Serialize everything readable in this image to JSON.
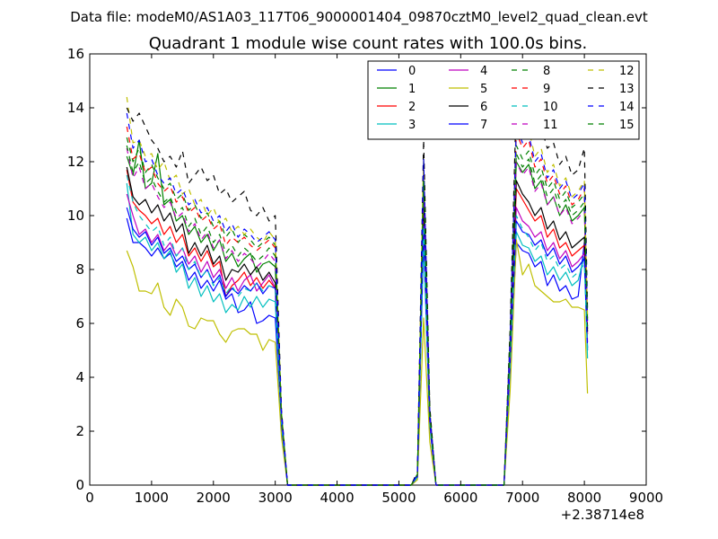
{
  "chart_data": {
    "type": "line",
    "suptitle": "Data file: modeM0/AS1A03_117T06_9000001404_09870cztM0_level2_quad_clean.evt",
    "title": "Quadrant 1 module wise count rates with 100.0s bins.",
    "xlabel": "",
    "ylabel": "",
    "x_offset_label": "+2.38714e8",
    "xlim": [
      0,
      9000
    ],
    "ylim": [
      0,
      16
    ],
    "xticks": [
      0,
      1000,
      2000,
      3000,
      4000,
      5000,
      6000,
      7000,
      8000,
      9000
    ],
    "yticks": [
      0,
      2,
      4,
      6,
      8,
      10,
      12,
      14,
      16
    ],
    "legend_position": "top-right",
    "legend_columns": 4,
    "x": [
      600,
      700,
      800,
      900,
      1000,
      1100,
      1200,
      1300,
      1400,
      1500,
      1600,
      1700,
      1800,
      1900,
      2000,
      2100,
      2200,
      2300,
      2400,
      2500,
      2600,
      2700,
      2800,
      2900,
      3000,
      3100,
      3200,
      3300,
      5200,
      5300,
      5400,
      5500,
      5600,
      5700,
      6700,
      6800,
      6900,
      7000,
      7100,
      7200,
      7300,
      7400,
      7500,
      7600,
      7700,
      7800,
      7900,
      8000,
      8050
    ],
    "series": [
      {
        "name": "0",
        "color": "#0000ff",
        "dash": "solid",
        "values": [
          9.9,
          9.0,
          9.0,
          8.8,
          8.5,
          8.8,
          8.4,
          8.6,
          8.1,
          8.3,
          7.6,
          7.9,
          7.3,
          7.6,
          7.2,
          7.6,
          6.9,
          7.1,
          6.4,
          6.5,
          6.8,
          6.0,
          6.1,
          6.3,
          6.2,
          2.3,
          0.0,
          0.0,
          0.0,
          0.3,
          9.3,
          2.2,
          0.0,
          0.0,
          0.0,
          4.3,
          9.0,
          8.7,
          8.6,
          8.1,
          8.3,
          7.4,
          7.8,
          7.2,
          7.4,
          6.9,
          7.0,
          9.0,
          5.0
        ]
      },
      {
        "name": "1",
        "color": "#008000",
        "dash": "solid",
        "values": [
          12.2,
          11.5,
          12.8,
          11.0,
          11.2,
          12.3,
          10.4,
          10.6,
          9.8,
          10.0,
          9.3,
          9.6,
          9.0,
          9.3,
          8.7,
          9.1,
          8.3,
          8.6,
          8.1,
          8.4,
          8.6,
          7.9,
          8.2,
          8.3,
          8.1,
          2.5,
          0.0,
          0.0,
          0.0,
          0.4,
          11.2,
          2.6,
          0.0,
          0.0,
          0.0,
          5.2,
          12.0,
          11.6,
          11.9,
          11.0,
          11.3,
          10.4,
          10.7,
          10.0,
          10.4,
          9.8,
          10.0,
          10.3,
          5.8
        ]
      },
      {
        "name": "2",
        "color": "#ff0000",
        "dash": "solid",
        "values": [
          11.7,
          10.5,
          10.2,
          10.0,
          9.7,
          9.9,
          9.3,
          9.6,
          9.0,
          9.3,
          8.5,
          8.8,
          8.3,
          8.7,
          8.1,
          8.3,
          7.0,
          7.4,
          7.6,
          7.9,
          7.4,
          7.7,
          7.3,
          7.6,
          7.3,
          2.4,
          0.0,
          0.0,
          0.0,
          0.3,
          10.3,
          2.4,
          0.0,
          0.0,
          0.0,
          4.9,
          11.0,
          10.6,
          10.2,
          9.8,
          10.0,
          9.2,
          9.5,
          8.8,
          9.0,
          8.5,
          8.7,
          8.9,
          5.6
        ]
      },
      {
        "name": "3",
        "color": "#00bfbf",
        "dash": "solid",
        "values": [
          11.2,
          9.3,
          9.0,
          9.2,
          8.7,
          9.0,
          8.4,
          8.7,
          7.9,
          8.2,
          7.3,
          7.7,
          7.0,
          7.4,
          6.8,
          7.1,
          6.4,
          6.7,
          6.5,
          7.0,
          6.6,
          7.0,
          6.6,
          6.9,
          6.8,
          2.2,
          0.0,
          0.0,
          0.0,
          0.3,
          9.0,
          2.2,
          0.0,
          0.0,
          0.0,
          4.4,
          9.4,
          8.9,
          8.8,
          8.3,
          8.5,
          7.8,
          8.1,
          7.6,
          7.9,
          7.4,
          7.6,
          8.5,
          4.7
        ]
      },
      {
        "name": "4",
        "color": "#bf00bf",
        "dash": "solid",
        "values": [
          10.8,
          10.0,
          9.3,
          9.5,
          9.0,
          9.3,
          8.7,
          9.0,
          8.5,
          8.8,
          8.2,
          8.5,
          7.9,
          8.3,
          7.7,
          8.0,
          7.3,
          7.7,
          7.2,
          7.6,
          7.8,
          7.2,
          7.5,
          7.8,
          7.3,
          2.4,
          0.0,
          0.0,
          0.0,
          0.3,
          9.8,
          2.3,
          0.0,
          0.0,
          0.0,
          4.7,
          10.3,
          9.8,
          9.6,
          9.2,
          9.4,
          8.7,
          9.0,
          8.4,
          8.7,
          8.1,
          8.3,
          8.6,
          5.3
        ]
      },
      {
        "name": "5",
        "color": "#bfbf00",
        "dash": "solid",
        "values": [
          8.7,
          8.1,
          7.2,
          7.2,
          7.1,
          7.5,
          6.6,
          6.3,
          6.9,
          6.6,
          5.9,
          5.8,
          6.2,
          6.1,
          6.1,
          5.6,
          5.3,
          5.7,
          5.8,
          5.8,
          5.6,
          5.6,
          5.0,
          5.4,
          5.3,
          1.8,
          0.0,
          0.0,
          0.0,
          0.2,
          6.2,
          1.6,
          0.0,
          0.0,
          0.0,
          3.5,
          9.1,
          7.8,
          8.2,
          7.4,
          7.2,
          7.0,
          6.8,
          6.8,
          6.9,
          6.6,
          6.6,
          6.5,
          3.4
        ]
      },
      {
        "name": "6",
        "color": "#000000",
        "dash": "solid",
        "values": [
          11.8,
          10.7,
          10.4,
          10.6,
          10.1,
          10.4,
          9.8,
          10.1,
          9.4,
          9.7,
          8.6,
          9.0,
          8.5,
          8.9,
          8.2,
          8.5,
          7.6,
          8.0,
          7.9,
          8.2,
          7.8,
          8.1,
          7.6,
          7.9,
          7.5,
          2.5,
          0.0,
          0.0,
          0.0,
          0.4,
          10.6,
          2.4,
          0.0,
          0.0,
          0.0,
          5.0,
          11.3,
          10.8,
          10.5,
          10.0,
          10.3,
          9.5,
          9.8,
          9.1,
          9.4,
          8.8,
          9.0,
          9.2,
          5.7
        ]
      },
      {
        "name": "7",
        "color": "#0000ff",
        "dash": "solid",
        "values": [
          10.3,
          9.5,
          9.2,
          9.4,
          8.9,
          9.2,
          8.6,
          8.8,
          8.3,
          8.5,
          8.0,
          8.2,
          7.7,
          8.0,
          7.5,
          7.8,
          7.0,
          7.3,
          7.1,
          7.4,
          7.2,
          7.5,
          7.1,
          7.4,
          7.3,
          2.3,
          0.0,
          0.0,
          0.0,
          0.3,
          9.6,
          2.3,
          0.0,
          0.0,
          0.0,
          4.6,
          9.8,
          9.4,
          9.3,
          8.9,
          9.1,
          8.5,
          8.8,
          8.2,
          8.5,
          7.9,
          8.1,
          8.4,
          5.1
        ]
      },
      {
        "name": "8",
        "color": "#008000",
        "dash": "dashed",
        "values": [
          12.9,
          12.0,
          12.5,
          11.6,
          11.9,
          11.4,
          11.0,
          11.2,
          10.6,
          10.8,
          10.2,
          10.4,
          9.9,
          10.1,
          9.6,
          9.8,
          9.2,
          9.5,
          9.0,
          9.3,
          9.1,
          8.8,
          9.0,
          9.2,
          8.9,
          2.7,
          0.0,
          0.0,
          0.0,
          0.4,
          12.0,
          2.7,
          0.0,
          0.0,
          0.0,
          5.5,
          12.6,
          12.1,
          12.4,
          11.5,
          11.8,
          11.0,
          11.3,
          10.6,
          10.9,
          10.3,
          10.5,
          10.8,
          6.0
        ]
      },
      {
        "name": "9",
        "color": "#ff0000",
        "dash": "dashed",
        "values": [
          13.3,
          12.1,
          12.3,
          11.6,
          11.8,
          11.2,
          10.9,
          11.1,
          10.5,
          10.7,
          10.1,
          10.3,
          9.8,
          10.0,
          9.5,
          9.7,
          8.9,
          9.2,
          9.0,
          9.2,
          8.9,
          8.7,
          8.9,
          9.1,
          8.8,
          2.6,
          0.0,
          0.0,
          0.0,
          0.4,
          11.8,
          2.6,
          0.0,
          0.0,
          0.0,
          5.4,
          13.1,
          12.5,
          12.8,
          11.8,
          12.1,
          11.2,
          11.5,
          10.8,
          11.1,
          10.4,
          10.6,
          11.0,
          6.2
        ]
      },
      {
        "name": "10",
        "color": "#00bfbf",
        "dash": "dashed",
        "values": [
          11.5,
          10.5,
          10.0,
          9.7,
          9.4,
          9.6,
          8.9,
          9.2,
          8.5,
          8.8,
          8.0,
          8.3,
          7.7,
          8.0,
          7.4,
          7.7,
          7.1,
          7.4,
          7.0,
          7.3,
          7.2,
          7.5,
          7.2,
          7.4,
          7.3,
          2.3,
          0.0,
          0.0,
          0.0,
          0.3,
          9.6,
          2.3,
          0.0,
          0.0,
          0.0,
          4.6,
          10.0,
          9.5,
          9.2,
          8.7,
          9.0,
          8.3,
          8.5,
          8.0,
          8.2,
          7.7,
          7.9,
          8.2,
          5.0
        ]
      },
      {
        "name": "11",
        "color": "#bf00bf",
        "dash": "dashed",
        "values": [
          12.5,
          11.4,
          11.8,
          11.0,
          11.2,
          10.7,
          10.3,
          10.5,
          9.9,
          10.1,
          9.4,
          9.7,
          9.1,
          9.4,
          8.8,
          9.1,
          8.4,
          8.7,
          8.3,
          8.6,
          8.4,
          8.1,
          8.3,
          8.6,
          8.3,
          2.5,
          0.0,
          0.0,
          0.0,
          0.4,
          11.0,
          2.5,
          0.0,
          0.0,
          0.0,
          5.1,
          12.0,
          11.5,
          11.8,
          10.9,
          11.2,
          10.4,
          10.7,
          10.0,
          10.3,
          9.7,
          9.9,
          10.2,
          5.9
        ]
      },
      {
        "name": "12",
        "color": "#bfbf00",
        "dash": "dashed",
        "values": [
          14.4,
          12.7,
          12.8,
          12.2,
          12.3,
          11.7,
          12.0,
          11.3,
          11.5,
          10.8,
          11.0,
          10.4,
          10.6,
          10.0,
          10.3,
          9.7,
          9.9,
          9.4,
          9.6,
          9.3,
          9.5,
          9.2,
          9.0,
          9.4,
          9.1,
          2.7,
          0.0,
          0.0,
          0.0,
          0.4,
          12.2,
          2.8,
          0.0,
          0.0,
          0.0,
          5.6,
          13.6,
          12.9,
          13.2,
          12.2,
          12.5,
          11.6,
          11.9,
          11.1,
          11.4,
          10.7,
          10.9,
          11.3,
          6.3
        ]
      },
      {
        "name": "13",
        "color": "#000000",
        "dash": "dashed",
        "values": [
          14.0,
          13.5,
          13.8,
          13.3,
          12.8,
          12.5,
          12.0,
          12.2,
          11.8,
          12.4,
          11.2,
          11.5,
          11.8,
          11.3,
          11.5,
          10.8,
          11.0,
          10.5,
          10.7,
          10.9,
          10.2,
          10.0,
          10.3,
          9.8,
          10.0,
          2.8,
          0.0,
          0.0,
          0.0,
          0.5,
          12.8,
          2.9,
          0.0,
          0.0,
          0.0,
          5.8,
          14.3,
          13.6,
          13.8,
          13.1,
          13.3,
          12.5,
          12.7,
          11.9,
          12.2,
          11.5,
          11.7,
          12.5,
          6.5
        ]
      },
      {
        "name": "14",
        "color": "#0000ff",
        "dash": "dashed",
        "values": [
          13.8,
          12.5,
          12.8,
          12.0,
          12.1,
          11.5,
          11.2,
          11.4,
          10.8,
          11.0,
          10.4,
          10.6,
          10.1,
          10.3,
          9.8,
          10.0,
          9.4,
          9.7,
          9.2,
          9.5,
          9.3,
          9.0,
          9.2,
          9.4,
          9.1,
          2.7,
          0.0,
          0.0,
          0.0,
          0.4,
          12.1,
          2.7,
          0.0,
          0.0,
          0.0,
          5.5,
          13.3,
          12.7,
          13.0,
          12.0,
          12.3,
          11.4,
          11.7,
          11.0,
          11.3,
          10.6,
          10.8,
          11.2,
          6.1
        ]
      },
      {
        "name": "15",
        "color": "#008000",
        "dash": "dashed",
        "values": [
          12.6,
          11.6,
          12.0,
          11.2,
          11.4,
          10.9,
          10.5,
          10.7,
          10.1,
          10.3,
          9.6,
          9.9,
          9.3,
          9.6,
          9.0,
          9.3,
          8.6,
          8.9,
          8.5,
          8.8,
          8.6,
          8.3,
          8.5,
          8.8,
          8.5,
          2.6,
          0.0,
          0.0,
          0.0,
          0.4,
          11.3,
          2.6,
          0.0,
          0.0,
          0.0,
          5.2,
          12.3,
          11.8,
          12.1,
          11.2,
          11.5,
          10.7,
          11.0,
          10.3,
          10.6,
          10.0,
          10.2,
          10.5,
          5.9
        ]
      }
    ]
  }
}
